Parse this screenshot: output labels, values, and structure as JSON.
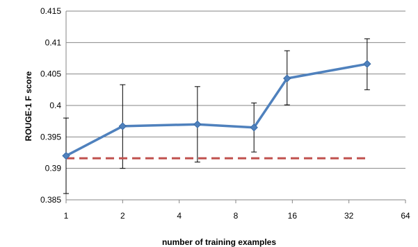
{
  "chart_data": {
    "type": "line",
    "title": "",
    "xlabel": "number of training examples",
    "ylabel": "ROUGE-1 F score",
    "x_scale": "log2",
    "xlim": [
      1,
      64
    ],
    "ylim": [
      0.385,
      0.415
    ],
    "x_ticks": [
      "1",
      "2",
      "4",
      "8",
      "16",
      "32",
      "64"
    ],
    "y_ticks": [
      "0.385",
      "0.39",
      "0.395",
      "0.4",
      "0.405",
      "0.41",
      "0.415"
    ],
    "grid": "horizontal",
    "legend": "none",
    "series": [
      {
        "color": "#4F81BD",
        "marker": "diamond",
        "x": [
          1,
          2,
          5,
          10,
          15,
          40
        ],
        "y": [
          0.392,
          0.3967,
          0.397,
          0.3965,
          0.4043,
          0.4066
        ],
        "err_low": [
          0.386,
          0.39,
          0.391,
          0.3926,
          0.4001,
          0.4025
        ],
        "err_high": [
          0.398,
          0.4033,
          0.403,
          0.4004,
          0.4087,
          0.4106
        ]
      },
      {
        "color": "#C0504D",
        "style": "dashed",
        "x": [
          1,
          40
        ],
        "y": [
          0.3916,
          0.3916
        ]
      }
    ]
  }
}
